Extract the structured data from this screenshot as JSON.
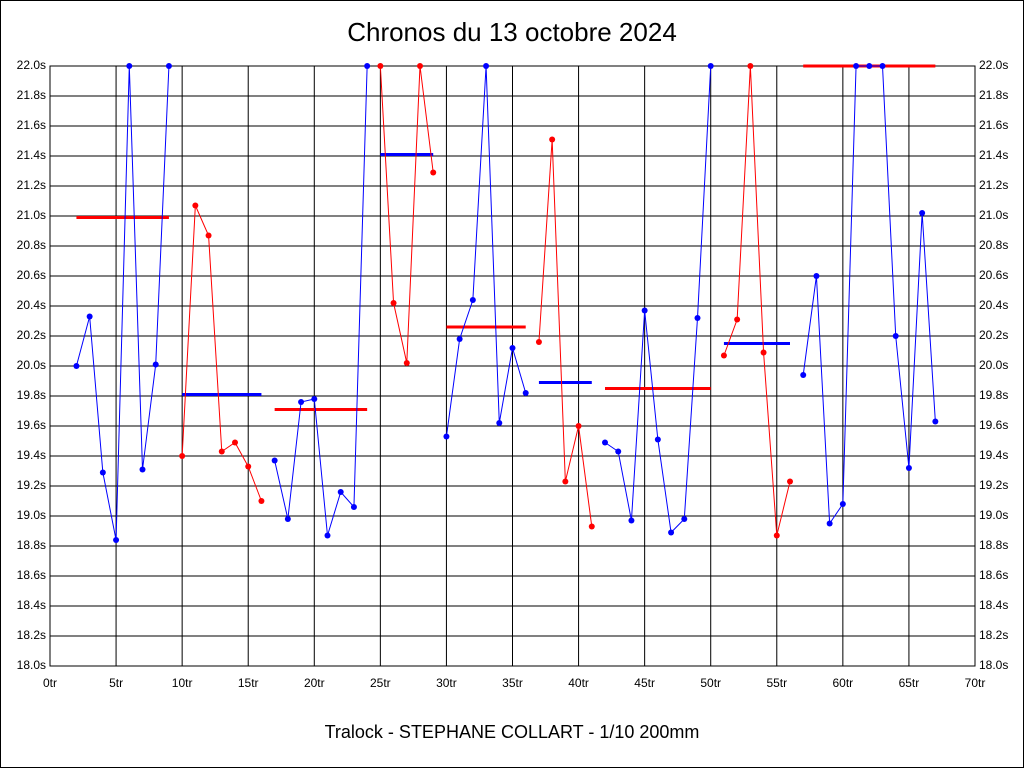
{
  "chart_data": {
    "type": "line",
    "title": "Chronos du 13 octobre 2024",
    "xlabel": "Tralock - STEPHANE COLLART - 1/10 200mm",
    "x": [
      2,
      3,
      4,
      5,
      6,
      7,
      8,
      9,
      10,
      11,
      12,
      13,
      14,
      15,
      16,
      17,
      18,
      19,
      20,
      21,
      22,
      23,
      24,
      25,
      26,
      27,
      28,
      29,
      30,
      31,
      32,
      33,
      34,
      35,
      36,
      37,
      38,
      39,
      40,
      41,
      42,
      43,
      44,
      45,
      46,
      47,
      48,
      49,
      50,
      51,
      52,
      53,
      54,
      55,
      56,
      57,
      58,
      59,
      60,
      61,
      62,
      63,
      64,
      65,
      66,
      67
    ],
    "series": [
      {
        "color": "#0000ff",
        "values": [
          20.0,
          20.33,
          19.29,
          18.84,
          22.0,
          19.31,
          20.01,
          22.0,
          null,
          null,
          null,
          null,
          null,
          null,
          null,
          19.37,
          18.98,
          19.76,
          19.78,
          18.87,
          19.16,
          19.06,
          22.0,
          null,
          null,
          null,
          null,
          null,
          19.53,
          20.18,
          20.44,
          22.0,
          19.62,
          20.12,
          19.82,
          null,
          null,
          null,
          null,
          null,
          19.49,
          19.43,
          18.97,
          20.37,
          19.51,
          18.89,
          18.98,
          20.32,
          22.0,
          null,
          null,
          null,
          null,
          null,
          null,
          19.94,
          20.6,
          18.95,
          19.08,
          22.0,
          22.0,
          22.0,
          20.2,
          19.32,
          21.02,
          19.63
        ]
      },
      {
        "color": "#ff0000",
        "values": [
          null,
          null,
          null,
          null,
          null,
          null,
          null,
          null,
          19.4,
          21.07,
          20.87,
          19.43,
          19.49,
          19.33,
          19.1,
          null,
          null,
          null,
          null,
          null,
          null,
          null,
          null,
          22.0,
          20.42,
          20.02,
          22.0,
          21.29,
          null,
          null,
          null,
          null,
          null,
          null,
          null,
          20.16,
          21.51,
          19.23,
          19.6,
          18.93,
          null,
          null,
          null,
          null,
          null,
          null,
          null,
          null,
          null,
          20.07,
          20.31,
          22.0,
          20.09,
          18.87,
          19.23,
          null,
          null,
          null,
          null,
          null,
          null,
          null,
          null,
          null,
          null,
          null
        ]
      }
    ],
    "averages": [
      {
        "x": [
          2,
          9
        ],
        "y": 20.99,
        "color": "#ff0000"
      },
      {
        "x": [
          10,
          16
        ],
        "y": 19.81,
        "color": "#0000ff"
      },
      {
        "x": [
          17,
          24
        ],
        "y": 19.71,
        "color": "#ff0000"
      },
      {
        "x": [
          25,
          29
        ],
        "y": 21.41,
        "color": "#0000ff"
      },
      {
        "x": [
          30,
          36
        ],
        "y": 20.26,
        "color": "#ff0000"
      },
      {
        "x": [
          37,
          41
        ],
        "y": 19.89,
        "color": "#0000ff"
      },
      {
        "x": [
          42,
          50
        ],
        "y": 19.85,
        "color": "#ff0000"
      },
      {
        "x": [
          51,
          56
        ],
        "y": 20.15,
        "color": "#0000ff"
      },
      {
        "x": [
          57,
          67
        ],
        "y": 22.0,
        "color": "#ff0000"
      }
    ],
    "xlim": [
      0,
      70
    ],
    "xticks": [
      {
        "value": 0,
        "label": "0tr"
      },
      {
        "value": 5,
        "label": "5tr"
      },
      {
        "value": 10,
        "label": "10tr"
      },
      {
        "value": 15,
        "label": "15tr"
      },
      {
        "value": 20,
        "label": "20tr"
      },
      {
        "value": 25,
        "label": "25tr"
      },
      {
        "value": 30,
        "label": "30tr"
      },
      {
        "value": 35,
        "label": "35tr"
      },
      {
        "value": 40,
        "label": "40tr"
      },
      {
        "value": 45,
        "label": "45tr"
      },
      {
        "value": 50,
        "label": "50tr"
      },
      {
        "value": 55,
        "label": "55tr"
      },
      {
        "value": 60,
        "label": "60tr"
      },
      {
        "value": 65,
        "label": "65tr"
      },
      {
        "value": 70,
        "label": "70tr"
      }
    ],
    "ylim": [
      18.0,
      22.0
    ],
    "yticks": [
      {
        "value": 18.0,
        "label": "18.0s"
      },
      {
        "value": 18.2,
        "label": "18.2s"
      },
      {
        "value": 18.4,
        "label": "18.4s"
      },
      {
        "value": 18.6,
        "label": "18.6s"
      },
      {
        "value": 18.8,
        "label": "18.8s"
      },
      {
        "value": 19.0,
        "label": "19.0s"
      },
      {
        "value": 19.2,
        "label": "19.2s"
      },
      {
        "value": 19.4,
        "label": "19.4s"
      },
      {
        "value": 19.6,
        "label": "19.6s"
      },
      {
        "value": 19.8,
        "label": "19.8s"
      },
      {
        "value": 20.0,
        "label": "20.0s"
      },
      {
        "value": 20.2,
        "label": "20.2s"
      },
      {
        "value": 20.4,
        "label": "20.4s"
      },
      {
        "value": 20.6,
        "label": "20.6s"
      },
      {
        "value": 20.8,
        "label": "20.8s"
      },
      {
        "value": 21.0,
        "label": "21.0s"
      },
      {
        "value": 21.2,
        "label": "21.2s"
      },
      {
        "value": 21.4,
        "label": "21.4s"
      },
      {
        "value": 21.6,
        "label": "21.6s"
      },
      {
        "value": 21.8,
        "label": "21.8s"
      },
      {
        "value": 22.0,
        "label": "22.0s"
      }
    ],
    "grid": true
  }
}
